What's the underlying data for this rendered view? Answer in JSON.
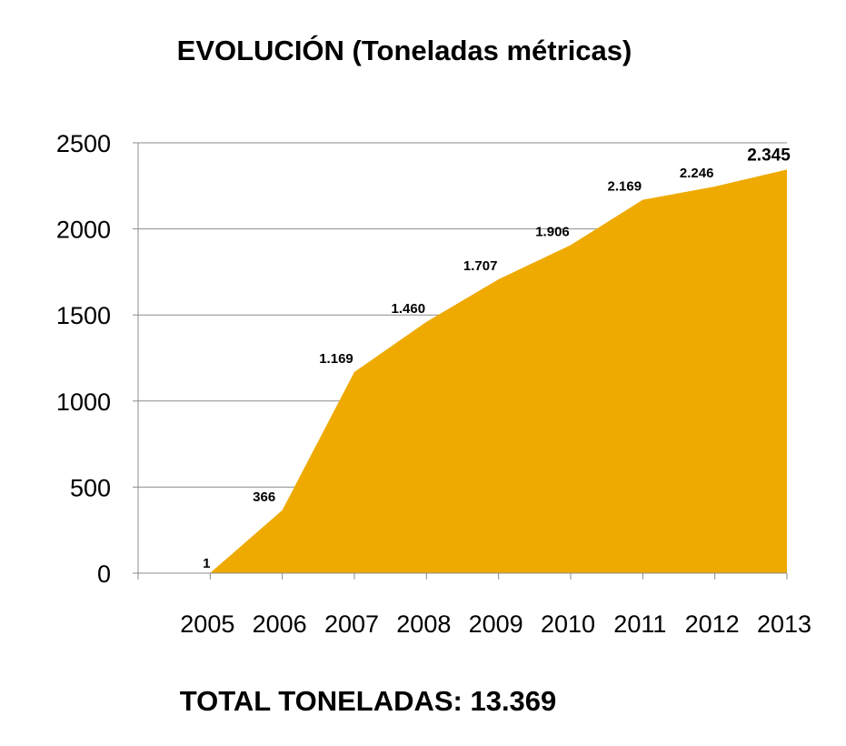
{
  "title": "EVOLUCIÓN (Toneladas métricas)",
  "footer": "TOTAL TONELADAS:  13.369",
  "colors": {
    "area_fill": "#EEAA00",
    "grid": "#8c8c8c",
    "axis": "#8c8c8c"
  },
  "chart_data": {
    "type": "area",
    "title": "EVOLUCIÓN (Toneladas métricas)",
    "xlabel": "",
    "ylabel": "",
    "categories": [
      "2005",
      "2006",
      "2007",
      "2008",
      "2009",
      "2010",
      "2011",
      "2012",
      "2013"
    ],
    "series": [
      {
        "values": [
          1,
          366,
          1169,
          1460,
          1707,
          1906,
          2169,
          2246,
          2345
        ],
        "labels": [
          "1",
          "366",
          "1.169",
          "1.460",
          "1.707",
          "1.906",
          "2.169",
          "2.246",
          "2.345"
        ]
      }
    ],
    "ylim": [
      0,
      2500
    ],
    "yticks": [
      0,
      500,
      1000,
      1500,
      2000,
      2500
    ],
    "grid": true,
    "legend": "none"
  }
}
